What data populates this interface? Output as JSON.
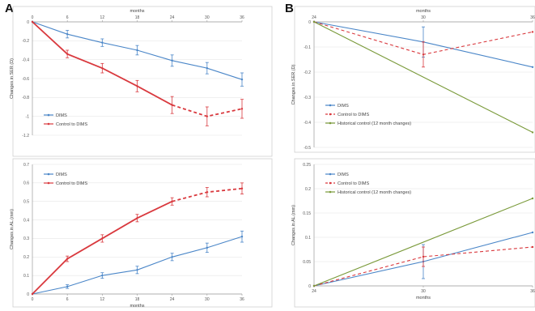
{
  "figure": {
    "panel_a": "A",
    "panel_b": "B"
  },
  "chart_data": [
    {
      "id": "A-top",
      "type": "line",
      "xlabel": "months",
      "ylabel": "Changes in SER (D)",
      "x_ticks": [
        0,
        6,
        12,
        18,
        24,
        30,
        36
      ],
      "y_ticks": [
        "0",
        "-0.2",
        "-0.4",
        "-0.6",
        "-0.8",
        "-1",
        "-1.2"
      ],
      "xlim": [
        0,
        36
      ],
      "ylim": [
        -1.2,
        0
      ],
      "legend_position": "left",
      "series": [
        {
          "name": "DIMS",
          "color": "#4a86c8",
          "dashed_from_index": null,
          "x": [
            0,
            6,
            12,
            18,
            24,
            30,
            36
          ],
          "y": [
            0,
            -0.13,
            -0.22,
            -0.3,
            -0.41,
            -0.49,
            -0.61
          ]
        },
        {
          "name": "Control to DIMS",
          "color": "#d9393e",
          "dashed_from_index": 4,
          "x": [
            0,
            6,
            12,
            18,
            24,
            30,
            36
          ],
          "y": [
            0,
            -0.34,
            -0.49,
            -0.68,
            -0.88,
            -1.0,
            -0.92
          ]
        }
      ]
    },
    {
      "id": "A-bottom",
      "type": "line",
      "xlabel": "months",
      "ylabel": "Changes in AL (mm)",
      "x_ticks": [
        0,
        6,
        12,
        18,
        24,
        30,
        36
      ],
      "y_ticks": [
        "0",
        "0.1",
        "0.2",
        "0.3",
        "0.4",
        "0.5",
        "0.6",
        "0.7"
      ],
      "xlim": [
        0,
        36
      ],
      "ylim": [
        0,
        0.7
      ],
      "legend_position": "top-left",
      "series": [
        {
          "name": "DIMS",
          "color": "#4a86c8",
          "dashed_from_index": null,
          "x": [
            0,
            6,
            12,
            18,
            24,
            30,
            36
          ],
          "y": [
            0,
            0.04,
            0.1,
            0.13,
            0.2,
            0.25,
            0.31
          ]
        },
        {
          "name": "Control to DIMS",
          "color": "#d9393e",
          "dashed_from_index": 4,
          "x": [
            0,
            6,
            12,
            18,
            24,
            30,
            36
          ],
          "y": [
            0,
            0.19,
            0.3,
            0.41,
            0.5,
            0.55,
            0.57
          ]
        }
      ]
    },
    {
      "id": "B-top",
      "type": "line",
      "xlabel": "months",
      "ylabel": "Changes in SER (D)",
      "x_ticks": [
        24,
        30,
        36
      ],
      "y_ticks": [
        "0",
        "-0.1",
        "-0.2",
        "-0.3",
        "-0.4",
        "-0.5"
      ],
      "xlim": [
        24,
        36
      ],
      "ylim": [
        -0.5,
        0
      ],
      "legend_position": "left",
      "series": [
        {
          "name": "DIMS",
          "color": "#4a86c8",
          "dashed": false,
          "x": [
            24,
            30,
            36
          ],
          "y": [
            0,
            -0.08,
            -0.18
          ]
        },
        {
          "name": "Control to DIMS",
          "color": "#d9393e",
          "dashed": true,
          "x": [
            24,
            30,
            36
          ],
          "y": [
            0,
            -0.13,
            -0.04
          ]
        },
        {
          "name": "Historical control (12 month changes)",
          "color": "#7a9a3a",
          "dashed": false,
          "x": [
            24,
            36
          ],
          "y": [
            0,
            -0.44
          ]
        }
      ]
    },
    {
      "id": "B-bottom",
      "type": "line",
      "xlabel": "months",
      "ylabel": "Changes in AL (mm)",
      "x_ticks": [
        24,
        30,
        36
      ],
      "y_ticks": [
        "0",
        "0.05",
        "0.1",
        "0.15",
        "0.2",
        "0.25"
      ],
      "xlim": [
        24,
        36
      ],
      "ylim": [
        0,
        0.25
      ],
      "legend_position": "top-left",
      "series": [
        {
          "name": "DIMS",
          "color": "#4a86c8",
          "dashed": false,
          "x": [
            24,
            30,
            36
          ],
          "y": [
            0,
            0.05,
            0.11
          ]
        },
        {
          "name": "Control to DIMS",
          "color": "#d9393e",
          "dashed": true,
          "x": [
            24,
            30,
            36
          ],
          "y": [
            0,
            0.06,
            0.08
          ]
        },
        {
          "name": "Historical control (12 month changes)",
          "color": "#7a9a3a",
          "dashed": false,
          "x": [
            24,
            36
          ],
          "y": [
            0,
            0.18
          ]
        }
      ]
    }
  ]
}
